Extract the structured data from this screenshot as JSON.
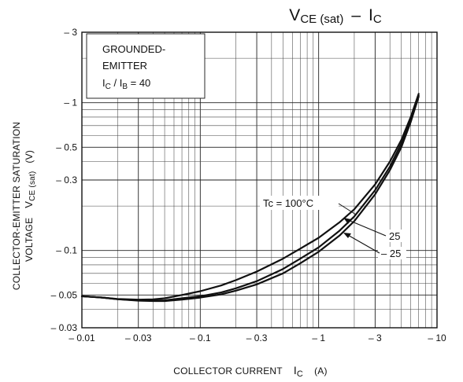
{
  "chart_data": {
    "type": "line",
    "title_main": "V",
    "title_main_sub": "CE (sat)",
    "title_dash": "–",
    "title_x": "I",
    "title_x_sub": "C",
    "xlabel_text": "COLLECTOR CURRENT",
    "xlabel_symbol": "I",
    "xlabel_symbol_sub": "C",
    "xlabel_unit": "(A)",
    "ylabel_line1": "COLLECTOR-EMITTER SATURATION",
    "ylabel_line2_text": "VOLTAGE",
    "ylabel_line2_symbol": "V",
    "ylabel_line2_symbol_sub": "CE (sat)",
    "ylabel_line2_unit": "(V)",
    "x_scale": "log",
    "y_scale": "log",
    "xlim": [
      0.01,
      10
    ],
    "ylim": [
      0.03,
      3
    ],
    "x_ticks": [
      {
        "value": 0.01,
        "label": "– 0.01"
      },
      {
        "value": 0.03,
        "label": "– 0.03"
      },
      {
        "value": 0.1,
        "label": "– 0.1"
      },
      {
        "value": 0.3,
        "label": "– 0.3"
      },
      {
        "value": 1,
        "label": "– 1"
      },
      {
        "value": 3,
        "label": "– 3"
      },
      {
        "value": 10,
        "label": "– 10"
      }
    ],
    "y_ticks": [
      {
        "value": 0.03,
        "label": "– 0.03"
      },
      {
        "value": 0.05,
        "label": "– 0.05"
      },
      {
        "value": 0.1,
        "label": "– 0.1"
      },
      {
        "value": 0.3,
        "label": "– 0.3"
      },
      {
        "value": 0.5,
        "label": "– 0.5"
      },
      {
        "value": 1,
        "label": "– 1"
      },
      {
        "value": 3,
        "label": "– 3"
      }
    ],
    "grid": true,
    "condition_lines": [
      "GROUNDED-",
      "EMITTER"
    ],
    "condition_ratio": {
      "a": "I",
      "a_sub": "C",
      "slash": " / ",
      "b": "I",
      "b_sub": "B",
      "value": " = 40"
    },
    "series": [
      {
        "name": "Tc = 100°C",
        "x": [
          0.01,
          0.015,
          0.02,
          0.03,
          0.04,
          0.05,
          0.07,
          0.1,
          0.15,
          0.2,
          0.3,
          0.5,
          0.7,
          1,
          1.5,
          2,
          3,
          4,
          5,
          6,
          7
        ],
        "y": [
          0.049,
          0.048,
          0.047,
          0.0465,
          0.0467,
          0.0475,
          0.05,
          0.053,
          0.058,
          0.063,
          0.072,
          0.088,
          0.103,
          0.122,
          0.155,
          0.19,
          0.28,
          0.4,
          0.56,
          0.8,
          1.15
        ]
      },
      {
        "name": "25",
        "x": [
          0.01,
          0.015,
          0.02,
          0.03,
          0.04,
          0.05,
          0.07,
          0.1,
          0.15,
          0.2,
          0.3,
          0.5,
          0.7,
          1,
          1.5,
          2,
          3,
          4,
          5,
          6,
          7
        ],
        "y": [
          0.049,
          0.048,
          0.0468,
          0.046,
          0.0458,
          0.046,
          0.0475,
          0.049,
          0.052,
          0.0555,
          0.062,
          0.075,
          0.088,
          0.105,
          0.136,
          0.17,
          0.256,
          0.37,
          0.53,
          0.77,
          1.12
        ]
      },
      {
        "name": "– 25",
        "x": [
          0.01,
          0.015,
          0.02,
          0.03,
          0.04,
          0.05,
          0.07,
          0.1,
          0.15,
          0.2,
          0.3,
          0.5,
          0.7,
          1,
          1.5,
          2,
          3,
          4,
          5,
          6,
          7
        ],
        "y": [
          0.049,
          0.048,
          0.0468,
          0.0458,
          0.0455,
          0.0455,
          0.0465,
          0.048,
          0.0505,
          0.0535,
          0.059,
          0.07,
          0.082,
          0.098,
          0.126,
          0.158,
          0.24,
          0.35,
          0.5,
          0.74,
          1.1
        ]
      }
    ]
  }
}
